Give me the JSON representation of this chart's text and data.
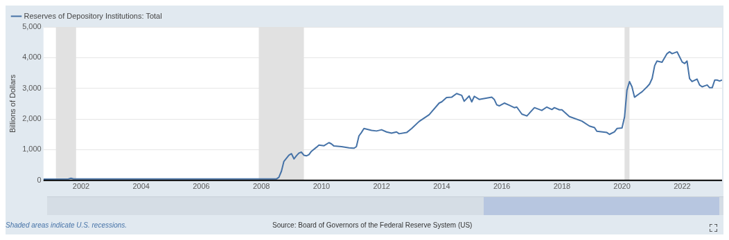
{
  "chart_data": {
    "type": "line",
    "ylabel": "Billions of Dollars",
    "legend": "top left",
    "grid": "y",
    "marker": "none",
    "line_style": "solid",
    "xlim": [
      "2000-10",
      "2023-05"
    ],
    "xticks": [
      "2002",
      "2004",
      "2006",
      "2008",
      "2010",
      "2012",
      "2014",
      "2016",
      "2018",
      "2020",
      "2022"
    ],
    "ylim": [
      0,
      5000
    ],
    "yticks": [
      0,
      {
        "value": 1000,
        "label": "1,000"
      },
      {
        "value": 2000,
        "label": "2,000"
      },
      {
        "value": 3000,
        "label": "3,000"
      },
      {
        "value": 4000,
        "label": "4,000"
      },
      {
        "value": 5000,
        "label": "5,000"
      }
    ],
    "bands": [
      {
        "axis": "x",
        "from": "2001-03",
        "to": "2001-11",
        "color": "#e1e1e1"
      },
      {
        "axis": "x",
        "from": "2007-12",
        "to": "2009-06",
        "color": "#e1e1e1"
      },
      {
        "axis": "x",
        "from": "2020-02",
        "to": "2020-04",
        "color": "#e1e1e1"
      }
    ],
    "annotations": [
      "Shaded areas indicate U.S. recessions.",
      "Source: Board of Governors of the Federal Reserve System (US)"
    ],
    "series": [
      {
        "name": "Reserves of Depository Institutions: Total",
        "color": "#4572a7",
        "x": [
          "2000-10",
          "2001-08",
          "2001-09",
          "2001-10",
          "2005-01",
          "2008-07",
          "2008-08",
          "2008-09",
          "2008-10",
          "2008-12",
          "2009-01",
          "2009-02",
          "2009-03",
          "2009-04",
          "2009-05",
          "2009-06",
          "2009-07",
          "2009-08",
          "2009-09",
          "2009-11",
          "2009-12",
          "2010-02",
          "2010-04",
          "2010-05",
          "2010-06",
          "2010-09",
          "2010-12",
          "2011-02",
          "2011-03",
          "2011-04",
          "2011-05",
          "2011-06",
          "2011-09",
          "2011-11",
          "2012-01",
          "2012-03",
          "2012-05",
          "2012-07",
          "2012-08",
          "2012-11",
          "2013-01",
          "2013-04",
          "2013-08",
          "2013-12",
          "2014-01",
          "2014-03",
          "2014-05",
          "2014-07",
          "2014-09",
          "2014-10",
          "2014-12",
          "2015-01",
          "2015-02",
          "2015-04",
          "2015-09",
          "2015-10",
          "2015-11",
          "2015-12",
          "2016-02",
          "2016-04",
          "2016-06",
          "2016-07",
          "2016-09",
          "2016-11",
          "2017-02",
          "2017-05",
          "2017-07",
          "2017-09",
          "2017-10",
          "2017-12",
          "2018-01",
          "2018-04",
          "2018-09",
          "2018-12",
          "2019-02",
          "2019-03",
          "2019-07",
          "2019-08",
          "2019-10",
          "2019-11",
          "2020-01",
          "2020-02",
          "2020-03",
          "2020-04",
          "2020-05",
          "2020-06",
          "2020-08",
          "2020-09",
          "2020-11",
          "2020-12",
          "2021-01",
          "2021-02",
          "2021-03",
          "2021-05",
          "2021-07",
          "2021-08",
          "2021-09",
          "2021-11",
          "2022-01",
          "2022-02",
          "2022-03",
          "2022-04",
          "2022-05",
          "2022-07",
          "2022-08",
          "2022-09",
          "2022-11",
          "2022-12",
          "2023-01",
          "2023-02",
          "2023-03",
          "2023-04",
          "2023-05"
        ],
        "values": [
          40,
          45,
          70,
          45,
          45,
          45,
          100,
          300,
          620,
          820,
          870,
          700,
          800,
          890,
          920,
          820,
          800,
          840,
          950,
          1080,
          1150,
          1130,
          1230,
          1190,
          1120,
          1100,
          1060,
          1050,
          1100,
          1450,
          1560,
          1690,
          1630,
          1610,
          1650,
          1580,
          1540,
          1580,
          1520,
          1560,
          1690,
          1920,
          2140,
          2520,
          2560,
          2700,
          2710,
          2830,
          2770,
          2580,
          2750,
          2560,
          2740,
          2640,
          2710,
          2640,
          2460,
          2430,
          2520,
          2450,
          2370,
          2390,
          2160,
          2100,
          2370,
          2280,
          2390,
          2310,
          2370,
          2300,
          2300,
          2080,
          1930,
          1770,
          1720,
          1600,
          1560,
          1500,
          1580,
          1690,
          1710,
          2070,
          2940,
          3220,
          3050,
          2710,
          2830,
          2890,
          3050,
          3140,
          3320,
          3740,
          3890,
          3850,
          4130,
          4190,
          4130,
          4190,
          3860,
          3810,
          3890,
          3320,
          3220,
          3300,
          3110,
          3050,
          3110,
          3020,
          3020,
          3270,
          3270,
          3240,
          3270
        ]
      }
    ]
  }
}
